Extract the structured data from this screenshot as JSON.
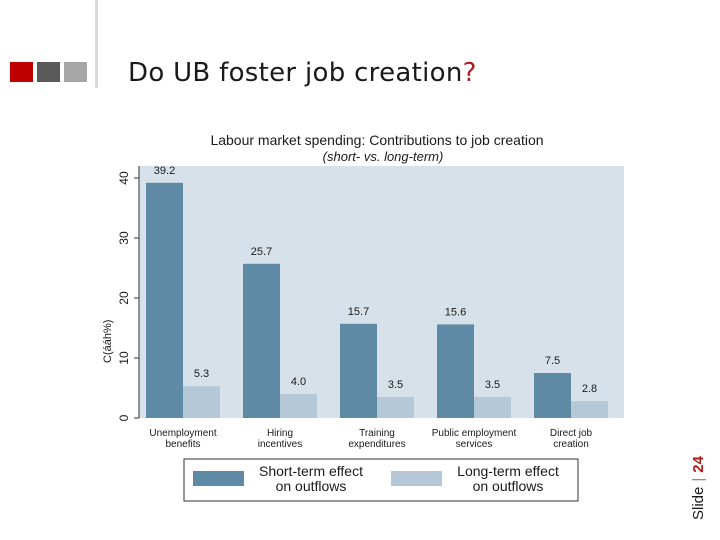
{
  "slide": {
    "title_main": "Do UB foster job creation",
    "title_mark": "?",
    "slide_label": "Slide",
    "slide_sep": "|",
    "slide_number": "24"
  },
  "colors": {
    "logo_red": "#c00000",
    "logo_gray1": "#595959",
    "logo_gray2": "#a6a6a6",
    "short_term": "#5f8aa6",
    "long_term": "#b4c8d8",
    "plot_bg": "#d6e1ea"
  },
  "chart_data": {
    "type": "bar",
    "title": "Labour market spending: Contributions to job creation",
    "subtitle": "(short- vs. long-term)",
    "ylabel": "C\n(\ná\ná\nh\n%\n)",
    "categories": [
      [
        "Unemployment",
        "benefits"
      ],
      [
        "Hiring",
        "incentives"
      ],
      [
        "Training",
        "expenditures"
      ],
      [
        "Public employment",
        "services"
      ],
      [
        "Direct job",
        "creation"
      ]
    ],
    "series": [
      {
        "name": "Short-term effect\non outflows",
        "values": [
          39.2,
          25.7,
          15.7,
          15.6,
          7.5
        ],
        "labels": [
          "39.2",
          "25.7",
          "15.7",
          "15.6",
          "7.5"
        ]
      },
      {
        "name": "Long-term effect\non outflows",
        "values": [
          5.3,
          4.0,
          3.5,
          3.5,
          2.8
        ],
        "labels": [
          "5.3",
          "4.0",
          "3.5",
          "3.5",
          "2.8"
        ]
      }
    ],
    "ylim": [
      0,
      42
    ],
    "yticks": [
      0,
      10,
      20,
      30,
      40
    ],
    "ytick_labels": [
      "0",
      "10",
      "20",
      "30",
      "40"
    ],
    "legend_position": "bottom",
    "grid": false
  }
}
